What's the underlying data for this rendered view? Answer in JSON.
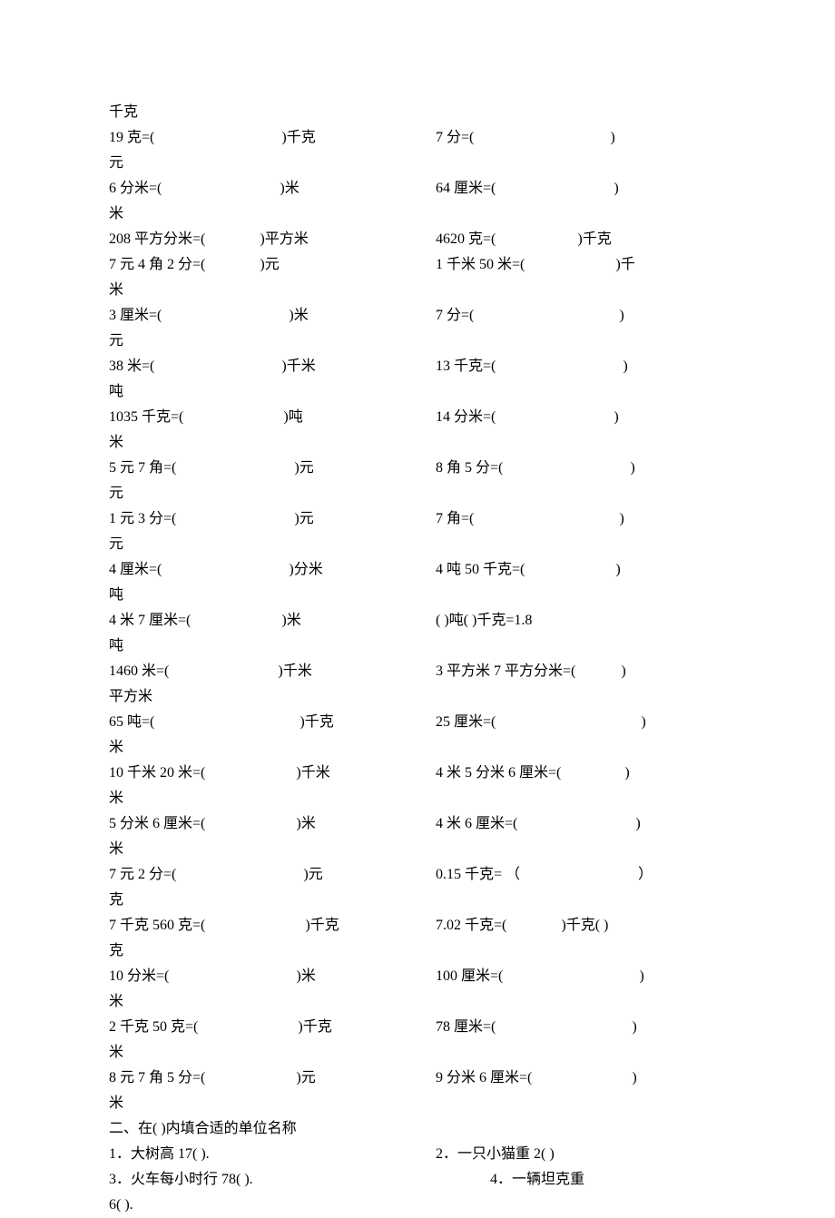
{
  "lines": [
    {
      "type": "single",
      "text": "千克"
    },
    {
      "type": "pair",
      "left": {
        "pre": "19 克=(",
        "gap": 140,
        "post": ")千克"
      },
      "right": {
        "pre": "7 分=(",
        "gap": 150,
        "post": ")"
      }
    },
    {
      "type": "single",
      "text": "元"
    },
    {
      "type": "pair",
      "left": {
        "pre": "6 分米=(",
        "gap": 130,
        "post": ")米"
      },
      "right": {
        "pre": "64 厘米=(",
        "gap": 130,
        "post": ")"
      }
    },
    {
      "type": "single",
      "text": "米"
    },
    {
      "type": "pair",
      "left": {
        "pre": "208 平方分米=(",
        "gap": 60,
        "post": ")平方米"
      },
      "right": {
        "pre": "4620 克=(",
        "gap": 90,
        "post": ")千克"
      }
    },
    {
      "type": "pair",
      "left": {
        "pre": "7 元 4 角 2 分=(",
        "gap": 60,
        "post": ")元"
      },
      "right": {
        "pre": "1 千米 50 米=(",
        "gap": 100,
        "post": ")千"
      }
    },
    {
      "type": "single",
      "text": "米"
    },
    {
      "type": "pair",
      "left": {
        "pre": "3 厘米=(",
        "gap": 140,
        "post": ")米"
      },
      "right": {
        "pre": "7 分=(",
        "gap": 160,
        "post": ")"
      }
    },
    {
      "type": "single",
      "text": "元"
    },
    {
      "type": "pair",
      "left": {
        "pre": "38 米=(",
        "gap": 140,
        "post": ")千米"
      },
      "right": {
        "pre": "13 千克=(",
        "gap": 140,
        "post": ")"
      }
    },
    {
      "type": "single",
      "text": "吨"
    },
    {
      "type": "pair",
      "left": {
        "pre": "1035 千克=(",
        "gap": 110,
        "post": ")吨"
      },
      "right": {
        "pre": "14 分米=(",
        "gap": 130,
        "post": ")"
      }
    },
    {
      "type": "single",
      "text": "米"
    },
    {
      "type": "pair",
      "left": {
        "pre": "5 元 7 角=(",
        "gap": 130,
        "post": ")元"
      },
      "right": {
        "pre": "8 角 5 分=(",
        "gap": 140,
        "post": ")"
      }
    },
    {
      "type": "single",
      "text": "元"
    },
    {
      "type": "pair",
      "left": {
        "pre": "1 元 3 分=(",
        "gap": 130,
        "post": ")元"
      },
      "right": {
        "pre": "7 角=(",
        "gap": 160,
        "post": ")"
      }
    },
    {
      "type": "single",
      "text": "元"
    },
    {
      "type": "pair",
      "left": {
        "pre": "4 厘米=(",
        "gap": 140,
        "post": ")分米"
      },
      "right": {
        "pre": "4 吨 50 千克=(",
        "gap": 100,
        "post": ")"
      }
    },
    {
      "type": "single",
      "text": "吨"
    },
    {
      "type": "pair",
      "left": {
        "pre": "4 米 7 厘米=(",
        "gap": 100,
        "post": ")米"
      },
      "right": {
        "pre": "(       )吨(       )千克=1.8",
        "gap": 0,
        "post": ""
      }
    },
    {
      "type": "single",
      "text": "吨"
    },
    {
      "type": "pair",
      "left": {
        "pre": "1460 米=(",
        "gap": 120,
        "post": ")千米"
      },
      "right": {
        "pre": "3 平方米 7 平方分米=(",
        "gap": 50,
        "post": ")"
      }
    },
    {
      "type": "single",
      "text": "平方米"
    },
    {
      "type": "pair",
      "left": {
        "pre": "65 吨=(",
        "gap": 160,
        "post": ")千克"
      },
      "right": {
        "pre": "25 厘米=(",
        "gap": 160,
        "post": ")"
      }
    },
    {
      "type": "single",
      "text": "米"
    },
    {
      "type": "pair",
      "left": {
        "pre": "10 千米 20 米=(",
        "gap": 100,
        "post": ")千米"
      },
      "right": {
        "pre": "4 米 5 分米 6 厘米=(",
        "gap": 70,
        "post": ")"
      }
    },
    {
      "type": "single",
      "text": "米"
    },
    {
      "type": "pair",
      "left": {
        "pre": "5 分米 6 厘米=(",
        "gap": 100,
        "post": ")米"
      },
      "right": {
        "pre": "4 米 6 厘米=(",
        "gap": 130,
        "post": ")"
      }
    },
    {
      "type": "single",
      "text": "米"
    },
    {
      "type": "pair",
      "left": {
        "pre": "7 元 2 分=(",
        "gap": 140,
        "post": ")元"
      },
      "right": {
        "pre": "0.15 千克= （",
        "gap": 130,
        "post": "）"
      }
    },
    {
      "type": "single",
      "text": "克"
    },
    {
      "type": "pair",
      "left": {
        "pre": "7 千克 560 克=(",
        "gap": 110,
        "post": ")千克"
      },
      "right": {
        "pre": "7.02 千克=(",
        "gap": 60,
        "post": ")千克(        )"
      }
    },
    {
      "type": "single",
      "text": "克"
    },
    {
      "type": "pair",
      "left": {
        "pre": "10 分米=(",
        "gap": 140,
        "post": ")米"
      },
      "right": {
        "pre": "100 厘米=(",
        "gap": 150,
        "post": ")"
      }
    },
    {
      "type": "single",
      "text": "米"
    },
    {
      "type": "pair",
      "left": {
        "pre": "2 千克 50 克=(",
        "gap": 110,
        "post": ")千克"
      },
      "right": {
        "pre": "78 厘米=(",
        "gap": 150,
        "post": ")"
      }
    },
    {
      "type": "single",
      "text": "米"
    },
    {
      "type": "pair",
      "left": {
        "pre": "8 元 7 角 5 分=(",
        "gap": 100,
        "post": ")元"
      },
      "right": {
        "pre": "9 分米 6 厘米=(",
        "gap": 110,
        "post": ")"
      }
    },
    {
      "type": "single",
      "text": "米"
    }
  ],
  "section2": {
    "title": "二、在(      )内填合适的单位名称",
    "q1": "1．大树高 17(              ).",
    "q2": "2．一只小猫重 2(              )",
    "q3": "3．火车每小时行 78(                  ).",
    "q4": "4．一辆坦克重",
    "q4b": "6(               )."
  }
}
